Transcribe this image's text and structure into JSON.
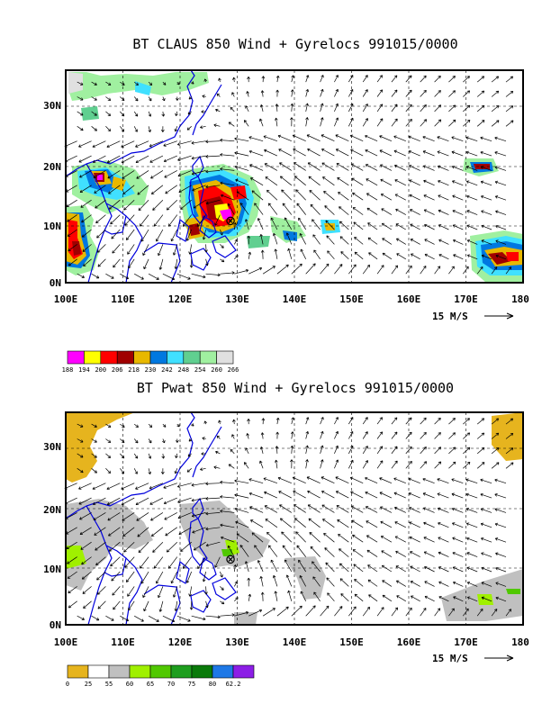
{
  "panels": [
    {
      "title": "BT CLAUS 850 Wind + Gyrelocs 991015/0000",
      "x_ticks": [
        "100E",
        "110E",
        "120E",
        "130E",
        "140E",
        "150E",
        "160E",
        "170E",
        "180"
      ],
      "y_ticks": [
        "0N",
        "10N",
        "20N",
        "30N"
      ],
      "vector_ref": "15 M/S",
      "legend_colors": [
        "#ff00ff",
        "#ffff00",
        "#ff0000",
        "#a00000",
        "#e8b800",
        "#0078e0",
        "#40e0ff",
        "#60cf90",
        "#a0f0a0",
        "#e0e0e0"
      ],
      "legend_labels": [
        "188",
        "194",
        "200",
        "206",
        "218",
        "230",
        "242",
        "248",
        "254",
        "260",
        "266"
      ]
    },
    {
      "title": "BT Pwat 850 Wind + Gyrelocs 991015/0000",
      "x_ticks": [
        "100E",
        "110E",
        "120E",
        "130E",
        "140E",
        "150E",
        "160E",
        "170E",
        "180"
      ],
      "y_ticks": [
        "0N",
        "10N",
        "20N",
        "30N"
      ],
      "vector_ref": "15 M/S",
      "legend_colors": [
        "#e6b41e",
        "#ffffff",
        "#c0c0c0",
        "#a0f000",
        "#50c800",
        "#1e9e1e",
        "#0a7a0a",
        "#1e78e6",
        "#8c1ee6"
      ],
      "legend_labels": [
        "0",
        "25",
        "55",
        "60",
        "65",
        "70",
        "75",
        "80",
        "62.2"
      ]
    }
  ],
  "storm_marker": {
    "lon": 128,
    "lat": 12,
    "symbol": "⊗"
  },
  "colors": {
    "coastline": "#0000dd",
    "frame": "#000000"
  }
}
